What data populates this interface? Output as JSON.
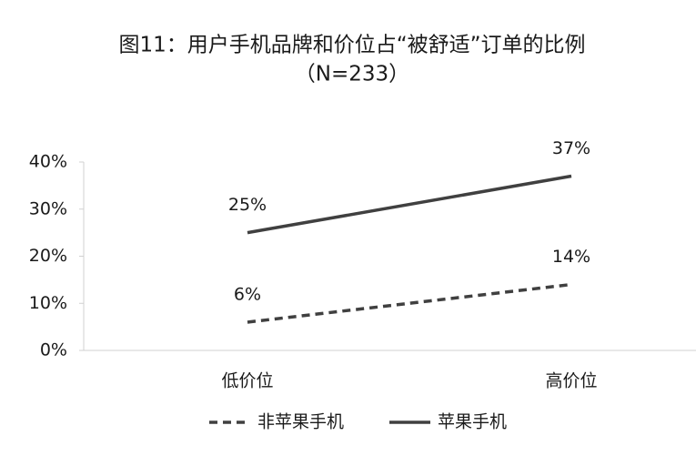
{
  "chart_data": {
    "type": "line",
    "title": "图11：用户手机品牌和价位占“被舒适”订单的比例",
    "subtitle": "（N=233）",
    "categories": [
      "低价位",
      "高价位"
    ],
    "series": [
      {
        "name": "非苹果手机",
        "color": "#404040",
        "dash": true,
        "values": [
          6,
          14
        ],
        "value_labels": [
          "6%",
          "14%"
        ]
      },
      {
        "name": "苹果手机",
        "color": "#404040",
        "dash": false,
        "values": [
          25,
          37
        ],
        "value_labels": [
          "25%",
          "37%"
        ]
      }
    ],
    "ylim": [
      0,
      40
    ],
    "yticks": [
      {
        "value": 0,
        "label": "0%"
      },
      {
        "value": 10,
        "label": "10%"
      },
      {
        "value": 20,
        "label": "20%"
      },
      {
        "value": 30,
        "label": "30%"
      },
      {
        "value": 40,
        "label": "40%"
      }
    ],
    "grid": false,
    "legend": "bottom"
  }
}
